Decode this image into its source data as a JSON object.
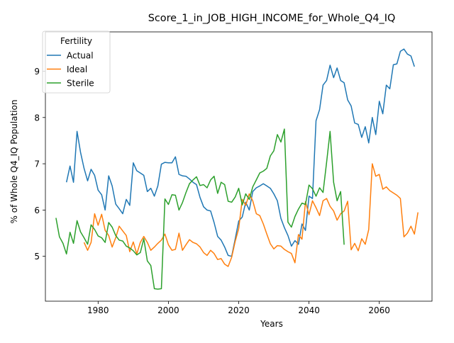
{
  "chart_data": {
    "type": "line",
    "title": "Score_1_in_JOB_HIGH_INCOME_for_Whole_Q4_IQ",
    "xlabel": "Years",
    "ylabel": "% of Whole Q4_IQ Population",
    "xlim": [
      1965,
      2075
    ],
    "ylim": [
      4.03,
      9.85
    ],
    "xticks": [
      1980,
      2000,
      2020,
      2040,
      2060
    ],
    "yticks": [
      5,
      6,
      7,
      8,
      9
    ],
    "grid": false,
    "legend": {
      "title": "Fertility",
      "placement": "top-left"
    },
    "series": [
      {
        "name": "Actual",
        "color": "#1f77b4",
        "points": [
          [
            1971,
            6.6
          ],
          [
            1972,
            6.95
          ],
          [
            1973,
            6.6
          ],
          [
            1974,
            7.7
          ],
          [
            1975,
            7.25
          ],
          [
            1976,
            6.9
          ],
          [
            1977,
            6.63
          ],
          [
            1978,
            6.88
          ],
          [
            1979,
            6.75
          ],
          [
            1980,
            6.43
          ],
          [
            1981,
            6.33
          ],
          [
            1982,
            6.0
          ],
          [
            1983,
            6.74
          ],
          [
            1984,
            6.52
          ],
          [
            1985,
            6.13
          ],
          [
            1986,
            6.03
          ],
          [
            1987,
            5.92
          ],
          [
            1988,
            6.23
          ],
          [
            1989,
            6.1
          ],
          [
            1990,
            7.02
          ],
          [
            1991,
            6.85
          ],
          [
            1992,
            6.8
          ],
          [
            1993,
            6.75
          ],
          [
            1994,
            6.4
          ],
          [
            1995,
            6.47
          ],
          [
            1996,
            6.3
          ],
          [
            1997,
            6.52
          ],
          [
            1998,
            6.99
          ],
          [
            1999,
            7.03
          ],
          [
            2000,
            7.02
          ],
          [
            2001,
            7.02
          ],
          [
            2002,
            7.15
          ],
          [
            2003,
            6.77
          ],
          [
            2004,
            6.74
          ],
          [
            2005,
            6.73
          ],
          [
            2006,
            6.67
          ],
          [
            2007,
            6.6
          ],
          [
            2008,
            6.55
          ],
          [
            2009,
            6.27
          ],
          [
            2010,
            6.07
          ],
          [
            2011,
            6.0
          ],
          [
            2012,
            5.98
          ],
          [
            2013,
            5.73
          ],
          [
            2014,
            5.43
          ],
          [
            2015,
            5.35
          ],
          [
            2016,
            5.2
          ],
          [
            2017,
            5.02
          ],
          [
            2018,
            5.0
          ],
          [
            2019,
            5.37
          ],
          [
            2020,
            5.76
          ],
          [
            2021,
            5.85
          ],
          [
            2022,
            6.17
          ],
          [
            2023,
            6.0
          ],
          [
            2024,
            6.4
          ],
          [
            2025,
            6.48
          ],
          [
            2026,
            6.52
          ],
          [
            2027,
            6.57
          ],
          [
            2028,
            6.52
          ],
          [
            2029,
            6.47
          ],
          [
            2030,
            6.35
          ],
          [
            2031,
            6.2
          ],
          [
            2032,
            5.82
          ],
          [
            2033,
            5.62
          ],
          [
            2034,
            5.45
          ],
          [
            2035,
            5.22
          ],
          [
            2036,
            5.34
          ],
          [
            2037,
            5.26
          ],
          [
            2038,
            5.7
          ],
          [
            2039,
            5.56
          ],
          [
            2040,
            6.3
          ],
          [
            2041,
            6.25
          ],
          [
            2042,
            7.93
          ],
          [
            2043,
            8.17
          ],
          [
            2044,
            8.7
          ],
          [
            2045,
            8.8
          ],
          [
            2046,
            9.13
          ],
          [
            2047,
            8.86
          ],
          [
            2048,
            9.07
          ],
          [
            2049,
            8.8
          ],
          [
            2050,
            8.75
          ],
          [
            2051,
            8.38
          ],
          [
            2052,
            8.25
          ],
          [
            2053,
            7.88
          ],
          [
            2054,
            7.85
          ],
          [
            2055,
            7.57
          ],
          [
            2056,
            7.8
          ],
          [
            2057,
            7.45
          ],
          [
            2058,
            8.0
          ],
          [
            2059,
            7.63
          ],
          [
            2060,
            8.35
          ],
          [
            2061,
            8.08
          ],
          [
            2062,
            8.7
          ],
          [
            2063,
            8.62
          ],
          [
            2064,
            9.14
          ],
          [
            2065,
            9.16
          ],
          [
            2066,
            9.43
          ],
          [
            2067,
            9.48
          ],
          [
            2068,
            9.37
          ],
          [
            2069,
            9.33
          ],
          [
            2070,
            9.1
          ]
        ]
      },
      {
        "name": "Ideal",
        "color": "#ff7f0e",
        "points": [
          [
            1976,
            5.3
          ],
          [
            1977,
            5.13
          ],
          [
            1978,
            5.3
          ],
          [
            1979,
            5.92
          ],
          [
            1980,
            5.67
          ],
          [
            1981,
            5.91
          ],
          [
            1982,
            5.56
          ],
          [
            1983,
            5.45
          ],
          [
            1984,
            5.2
          ],
          [
            1985,
            5.4
          ],
          [
            1986,
            5.65
          ],
          [
            1987,
            5.55
          ],
          [
            1988,
            5.45
          ],
          [
            1989,
            5.1
          ],
          [
            1990,
            5.31
          ],
          [
            1991,
            5.05
          ],
          [
            1992,
            5.3
          ],
          [
            1993,
            5.43
          ],
          [
            1994,
            5.3
          ],
          [
            1995,
            5.13
          ],
          [
            1996,
            5.2
          ],
          [
            1997,
            5.28
          ],
          [
            1998,
            5.35
          ],
          [
            1999,
            5.48
          ],
          [
            2000,
            5.25
          ],
          [
            2001,
            5.13
          ],
          [
            2002,
            5.15
          ],
          [
            2003,
            5.5
          ],
          [
            2004,
            5.13
          ],
          [
            2005,
            5.25
          ],
          [
            2006,
            5.36
          ],
          [
            2007,
            5.3
          ],
          [
            2008,
            5.27
          ],
          [
            2009,
            5.2
          ],
          [
            2010,
            5.08
          ],
          [
            2011,
            5.02
          ],
          [
            2012,
            5.13
          ],
          [
            2013,
            5.06
          ],
          [
            2014,
            4.93
          ],
          [
            2015,
            4.95
          ],
          [
            2016,
            4.83
          ],
          [
            2017,
            4.78
          ],
          [
            2018,
            4.98
          ],
          [
            2019,
            5.32
          ],
          [
            2020,
            5.6
          ],
          [
            2021,
            6.23
          ],
          [
            2022,
            6.1
          ],
          [
            2023,
            6.35
          ],
          [
            2024,
            6.2
          ],
          [
            2025,
            5.92
          ],
          [
            2026,
            5.88
          ],
          [
            2027,
            5.7
          ],
          [
            2028,
            5.48
          ],
          [
            2029,
            5.27
          ],
          [
            2030,
            5.16
          ],
          [
            2031,
            5.23
          ],
          [
            2032,
            5.22
          ],
          [
            2033,
            5.15
          ],
          [
            2034,
            5.1
          ],
          [
            2035,
            5.06
          ],
          [
            2036,
            4.86
          ],
          [
            2037,
            5.47
          ],
          [
            2038,
            5.37
          ],
          [
            2039,
            6.18
          ],
          [
            2040,
            5.9
          ],
          [
            2041,
            6.2
          ],
          [
            2042,
            6.05
          ],
          [
            2043,
            5.88
          ],
          [
            2044,
            6.2
          ],
          [
            2045,
            6.25
          ],
          [
            2046,
            6.08
          ],
          [
            2047,
            5.98
          ],
          [
            2048,
            5.78
          ],
          [
            2049,
            5.92
          ],
          [
            2050,
            5.98
          ],
          [
            2051,
            6.19
          ],
          [
            2052,
            5.14
          ],
          [
            2053,
            5.28
          ],
          [
            2054,
            5.12
          ],
          [
            2055,
            5.38
          ],
          [
            2056,
            5.26
          ],
          [
            2057,
            5.58
          ],
          [
            2058,
            7.0
          ],
          [
            2059,
            6.73
          ],
          [
            2060,
            6.77
          ],
          [
            2061,
            6.45
          ],
          [
            2062,
            6.5
          ],
          [
            2063,
            6.42
          ],
          [
            2064,
            6.37
          ],
          [
            2065,
            6.32
          ],
          [
            2066,
            6.25
          ],
          [
            2067,
            5.42
          ],
          [
            2068,
            5.5
          ],
          [
            2069,
            5.65
          ],
          [
            2070,
            5.48
          ],
          [
            2071,
            5.95
          ]
        ]
      },
      {
        "name": "Sterile",
        "color": "#2ca02c",
        "points": [
          [
            1968,
            5.83
          ],
          [
            1969,
            5.42
          ],
          [
            1970,
            5.28
          ],
          [
            1971,
            5.05
          ],
          [
            1972,
            5.52
          ],
          [
            1973,
            5.28
          ],
          [
            1974,
            5.77
          ],
          [
            1975,
            5.53
          ],
          [
            1976,
            5.4
          ],
          [
            1977,
            5.26
          ],
          [
            1978,
            5.68
          ],
          [
            1979,
            5.58
          ],
          [
            1980,
            5.44
          ],
          [
            1981,
            5.4
          ],
          [
            1982,
            5.3
          ],
          [
            1983,
            5.73
          ],
          [
            1984,
            5.63
          ],
          [
            1985,
            5.45
          ],
          [
            1986,
            5.35
          ],
          [
            1987,
            5.33
          ],
          [
            1988,
            5.22
          ],
          [
            1989,
            5.18
          ],
          [
            1990,
            5.12
          ],
          [
            1991,
            5.03
          ],
          [
            1992,
            5.08
          ],
          [
            1993,
            5.38
          ],
          [
            1994,
            4.9
          ],
          [
            1995,
            4.8
          ],
          [
            1996,
            4.3
          ],
          [
            1997,
            4.29
          ],
          [
            1998,
            4.3
          ],
          [
            1999,
            6.24
          ],
          [
            2000,
            6.12
          ],
          [
            2001,
            6.33
          ],
          [
            2002,
            6.32
          ],
          [
            2003,
            6.0
          ],
          [
            2004,
            6.16
          ],
          [
            2005,
            6.38
          ],
          [
            2006,
            6.57
          ],
          [
            2007,
            6.65
          ],
          [
            2008,
            6.72
          ],
          [
            2009,
            6.53
          ],
          [
            2010,
            6.55
          ],
          [
            2011,
            6.48
          ],
          [
            2012,
            6.65
          ],
          [
            2013,
            6.73
          ],
          [
            2014,
            6.36
          ],
          [
            2015,
            6.6
          ],
          [
            2016,
            6.55
          ],
          [
            2017,
            6.19
          ],
          [
            2018,
            6.17
          ],
          [
            2019,
            6.28
          ],
          [
            2020,
            6.47
          ],
          [
            2021,
            6.11
          ],
          [
            2022,
            6.35
          ],
          [
            2023,
            6.23
          ],
          [
            2024,
            6.5
          ],
          [
            2025,
            6.65
          ],
          [
            2026,
            6.8
          ],
          [
            2027,
            6.84
          ],
          [
            2028,
            6.9
          ],
          [
            2029,
            7.17
          ],
          [
            2030,
            7.28
          ],
          [
            2031,
            7.63
          ],
          [
            2032,
            7.47
          ],
          [
            2033,
            7.75
          ],
          [
            2034,
            5.74
          ],
          [
            2035,
            5.63
          ],
          [
            2036,
            5.86
          ],
          [
            2037,
            6.02
          ],
          [
            2038,
            6.15
          ],
          [
            2039,
            6.12
          ],
          [
            2040,
            6.54
          ],
          [
            2041,
            6.46
          ],
          [
            2042,
            6.3
          ],
          [
            2043,
            6.48
          ],
          [
            2044,
            6.38
          ],
          [
            2045,
            7.03
          ],
          [
            2046,
            7.7
          ],
          [
            2047,
            6.6
          ],
          [
            2048,
            6.2
          ],
          [
            2049,
            6.4
          ],
          [
            2050,
            5.25
          ]
        ]
      }
    ]
  }
}
